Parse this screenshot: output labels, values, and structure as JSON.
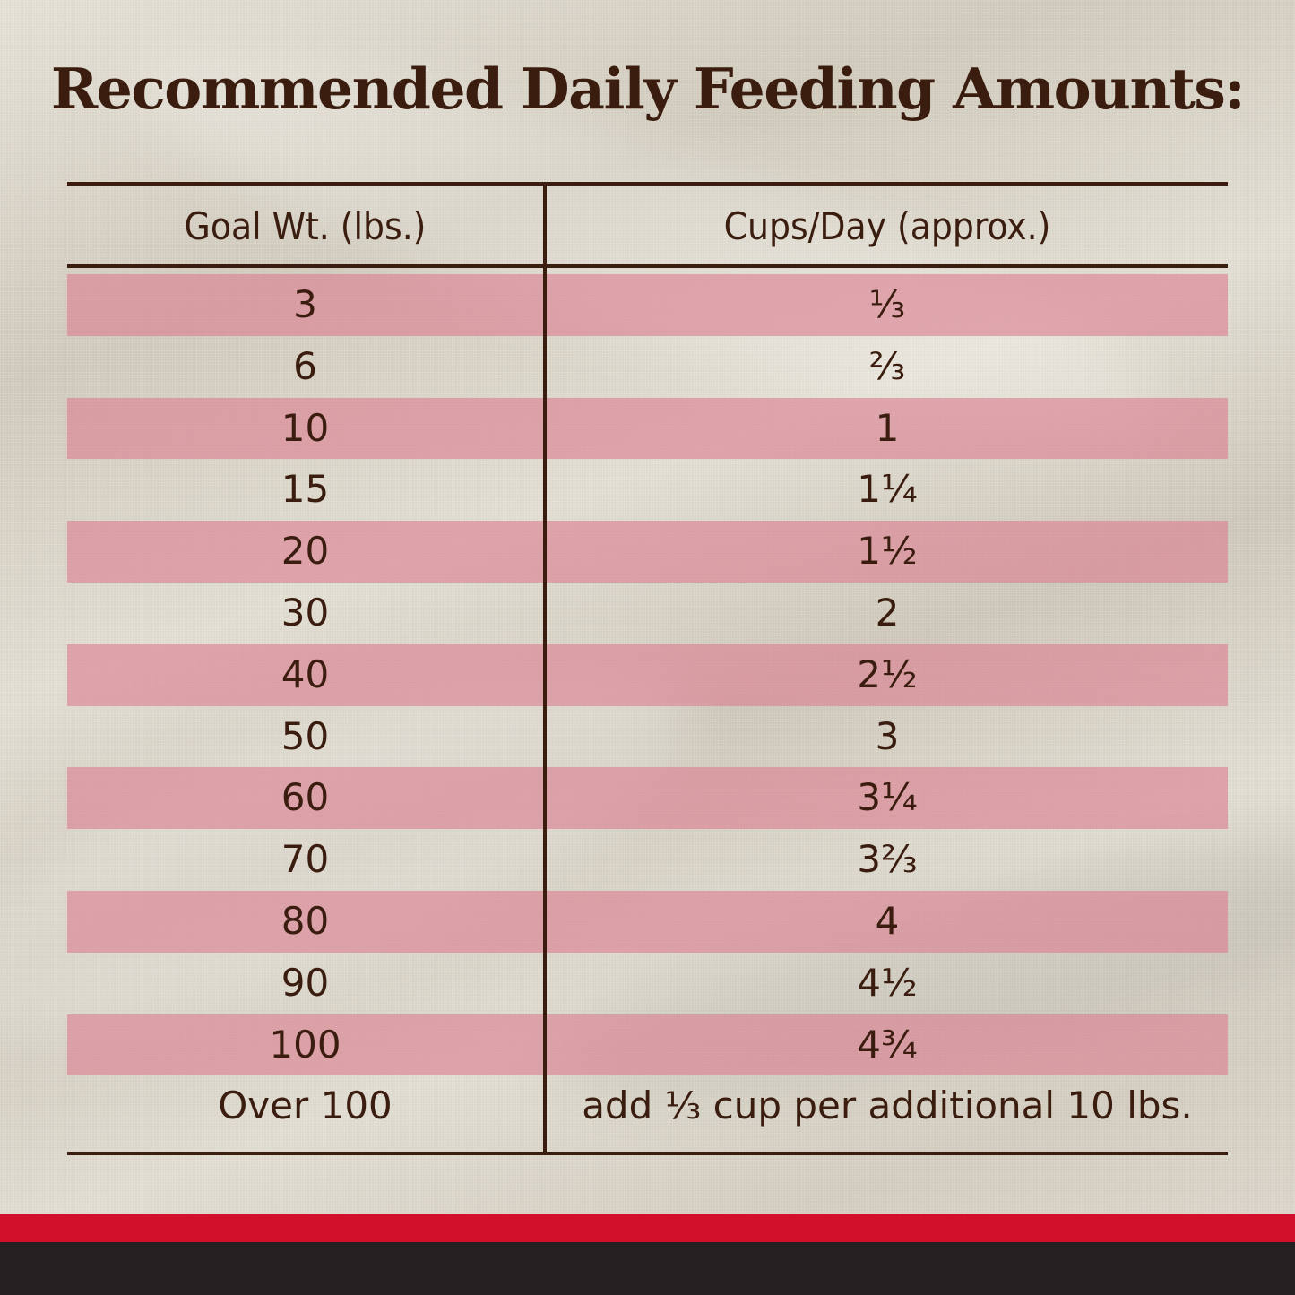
{
  "title": "Recommended Daily Feeding Amounts:",
  "table": {
    "headers": {
      "goal_weight": "Goal Wt. (lbs.)",
      "cups_per_day": "Cups/Day (approx.)"
    },
    "rows": [
      {
        "weight": "3",
        "cups": "⅓",
        "shaded": true
      },
      {
        "weight": "6",
        "cups": "⅔",
        "shaded": false
      },
      {
        "weight": "10",
        "cups": "1",
        "shaded": true
      },
      {
        "weight": "15",
        "cups": "1¼",
        "shaded": false
      },
      {
        "weight": "20",
        "cups": "1½",
        "shaded": true
      },
      {
        "weight": "30",
        "cups": "2",
        "shaded": false
      },
      {
        "weight": "40",
        "cups": "2½",
        "shaded": true
      },
      {
        "weight": "50",
        "cups": "3",
        "shaded": false
      },
      {
        "weight": "60",
        "cups": "3¼",
        "shaded": true
      },
      {
        "weight": "70",
        "cups": "3⅔",
        "shaded": false
      },
      {
        "weight": "80",
        "cups": "4",
        "shaded": true
      },
      {
        "weight": "90",
        "cups": "4½",
        "shaded": false
      },
      {
        "weight": "100",
        "cups": "4¾",
        "shaded": true
      },
      {
        "weight": "Over 100",
        "cups": "add ⅓ cup per additional 10 lbs.",
        "shaded": false
      }
    ]
  },
  "colors": {
    "text": "#3b1d10",
    "row_shade": "#dc8091",
    "band_red": "#d2102c",
    "band_black": "#241f20"
  }
}
